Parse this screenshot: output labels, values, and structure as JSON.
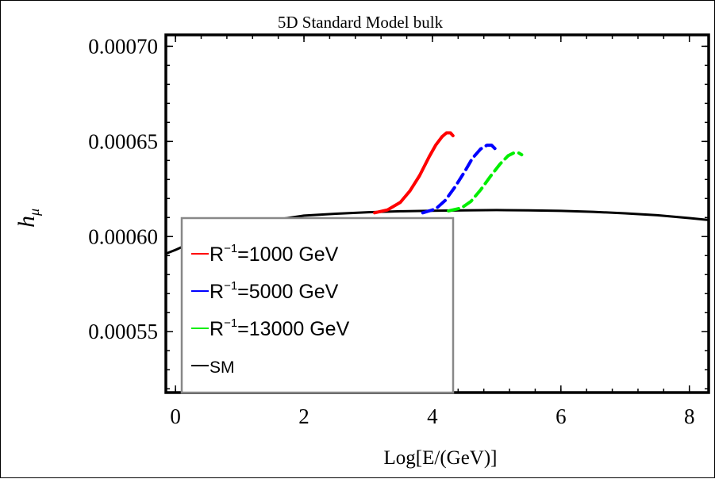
{
  "chart_data": {
    "type": "line",
    "title": "5D Standard Model bulk",
    "xlabel": "Log[E/(GeV)]",
    "ylabel": {
      "base": "h",
      "subscript": "μ"
    },
    "xlim": [
      -0.15,
      8.3
    ],
    "ylim": [
      0.000518,
      0.000706
    ],
    "xticks": [
      {
        "value": 0,
        "label": "0"
      },
      {
        "value": 2,
        "label": "2"
      },
      {
        "value": 4,
        "label": "4"
      },
      {
        "value": 6,
        "label": "6"
      },
      {
        "value": 8,
        "label": "8"
      }
    ],
    "yticks": [
      {
        "value": 0.00055,
        "label": "0.00055"
      },
      {
        "value": 0.0006,
        "label": "0.00060"
      },
      {
        "value": 0.00065,
        "label": "0.00065"
      },
      {
        "value": 0.0007,
        "label": "0.00070"
      }
    ],
    "series": [
      {
        "legend_prefix": "R",
        "legend_sup": "−1",
        "legend_suffix": "=1000 GeV",
        "color": "#ff0000",
        "dash": "solid",
        "x": [
          3.1,
          3.3,
          3.5,
          3.65,
          3.8,
          3.95,
          4.05,
          4.15,
          4.22,
          4.28,
          4.32
        ],
        "y": [
          0.0006125,
          0.000614,
          0.000618,
          0.000624,
          0.000632,
          0.000642,
          0.000648,
          0.0006525,
          0.0006545,
          0.0006545,
          0.000653
        ]
      },
      {
        "legend_prefix": "R",
        "legend_sup": "−1",
        "legend_suffix": "=5000 GeV",
        "color": "#0000ff",
        "dash": "dashed",
        "x": [
          3.85,
          4.05,
          4.2,
          4.35,
          4.5,
          4.62,
          4.75,
          4.85,
          4.92,
          4.98
        ],
        "y": [
          0.0006125,
          0.0006145,
          0.000619,
          0.000626,
          0.000634,
          0.000641,
          0.000646,
          0.000648,
          0.000648,
          0.000646
        ]
      },
      {
        "legend_prefix": "R",
        "legend_sup": "−1",
        "legend_suffix": "=13000 GeV",
        "color": "#00ee00",
        "dash": "dashed",
        "x": [
          4.25,
          4.45,
          4.6,
          4.75,
          4.9,
          5.05,
          5.18,
          5.27,
          5.34,
          5.39
        ],
        "y": [
          0.0006135,
          0.000615,
          0.0006185,
          0.0006245,
          0.0006315,
          0.000638,
          0.0006425,
          0.000644,
          0.000644,
          0.000643
        ]
      },
      {
        "legend_label": "SM",
        "color": "#000000",
        "dash": "solid",
        "x": [
          -0.15,
          0.0,
          0.2,
          0.5,
          1.0,
          1.5,
          2.0,
          2.5,
          3.0,
          3.5,
          4.0,
          4.5,
          5.0,
          5.5,
          6.0,
          6.5,
          7.0,
          7.5,
          8.0,
          8.3
        ],
        "y": [
          0.000591,
          0.000593,
          0.000596,
          0.0006,
          0.000605,
          0.0006085,
          0.000611,
          0.000612,
          0.0006128,
          0.0006133,
          0.0006136,
          0.0006138,
          0.0006139,
          0.0006138,
          0.0006135,
          0.000613,
          0.0006122,
          0.0006112,
          0.0006097,
          0.0006087
        ]
      }
    ],
    "legend_position": "bottom-left",
    "grid": false
  }
}
